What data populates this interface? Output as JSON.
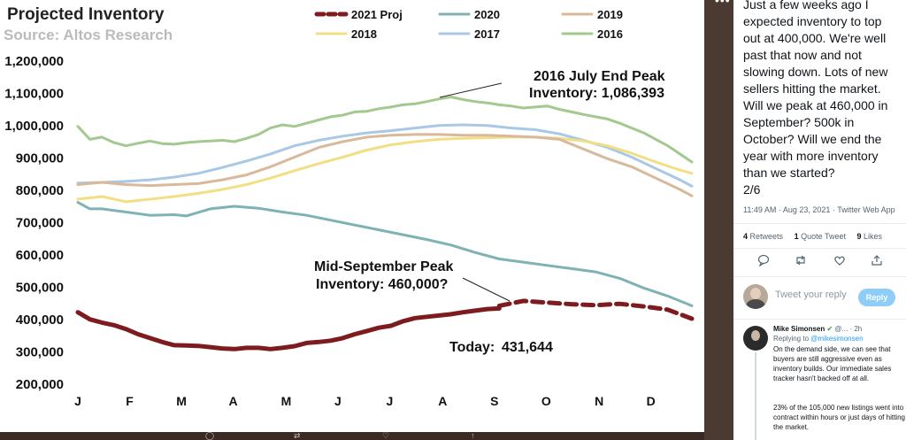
{
  "chart_data": {
    "type": "line",
    "title": "Projected Inventory",
    "subtitle": "Source: Altos Research",
    "categories": [
      "J",
      "F",
      "M",
      "A",
      "M",
      "J",
      "J",
      "A",
      "S",
      "O",
      "N",
      "D"
    ],
    "yticks": [
      "1,200,000",
      "1,100,000",
      "1,000,000",
      "900,000",
      "800,000",
      "700,000",
      "600,000",
      "500,000",
      "400,000",
      "300,000",
      "200,000"
    ],
    "ylim": [
      200000,
      1200000
    ],
    "xlim": [
      1,
      52
    ],
    "grid": false,
    "legend_position": "top",
    "series": [
      {
        "name": "2021 Proj",
        "color": "#7d1b1f",
        "dashed": true,
        "width": 5,
        "x": [
          36,
          38,
          40,
          42,
          44,
          46,
          48,
          50,
          52
        ],
        "y": [
          440000,
          455000,
          450000,
          445000,
          442000,
          446000,
          438000,
          428000,
          400000
        ]
      },
      {
        "name": "2020",
        "color": "#7fb2b2",
        "width": 3,
        "x": [
          1,
          2,
          3,
          5,
          7,
          9,
          10,
          12,
          14,
          16,
          18,
          20,
          22,
          24,
          26,
          28,
          30,
          32,
          34,
          36,
          38,
          40,
          42,
          44,
          46,
          48,
          50,
          52
        ],
        "y": [
          760000,
          740000,
          740000,
          730000,
          720000,
          722000,
          718000,
          740000,
          748000,
          742000,
          730000,
          720000,
          705000,
          690000,
          675000,
          660000,
          645000,
          628000,
          605000,
          585000,
          575000,
          565000,
          555000,
          545000,
          525000,
          495000,
          470000,
          440000
        ]
      },
      {
        "name": "2019",
        "color": "#d9b99b",
        "width": 3,
        "x": [
          1,
          3,
          5,
          7,
          9,
          11,
          13,
          15,
          17,
          19,
          21,
          23,
          25,
          27,
          29,
          31,
          33,
          35,
          37,
          39,
          41,
          43,
          45,
          47,
          49,
          51,
          52
        ],
        "y": [
          815000,
          822000,
          815000,
          812000,
          815000,
          818000,
          830000,
          845000,
          870000,
          900000,
          930000,
          948000,
          962000,
          968000,
          970000,
          970000,
          968000,
          968000,
          965000,
          962000,
          955000,
          925000,
          895000,
          870000,
          835000,
          800000,
          780000
        ]
      },
      {
        "name": "2018",
        "color": "#f2df85",
        "width": 3,
        "x": [
          1,
          3,
          5,
          7,
          9,
          11,
          13,
          15,
          17,
          19,
          21,
          23,
          25,
          27,
          29,
          31,
          33,
          35,
          37,
          39,
          41,
          43,
          45,
          47,
          49,
          51,
          52
        ],
        "y": [
          770000,
          778000,
          762000,
          770000,
          778000,
          788000,
          800000,
          815000,
          835000,
          858000,
          880000,
          900000,
          922000,
          938000,
          948000,
          955000,
          958000,
          960000,
          962000,
          962000,
          958000,
          950000,
          935000,
          912000,
          885000,
          860000,
          850000
        ]
      },
      {
        "name": "2017",
        "color": "#a9c8e6",
        "width": 3,
        "x": [
          1,
          3,
          5,
          7,
          9,
          11,
          13,
          15,
          17,
          19,
          21,
          23,
          25,
          27,
          29,
          31,
          33,
          35,
          37,
          39,
          41,
          43,
          45,
          47,
          49,
          51,
          52
        ],
        "y": [
          820000,
          822000,
          825000,
          830000,
          838000,
          850000,
          868000,
          888000,
          910000,
          935000,
          952000,
          965000,
          975000,
          982000,
          990000,
          998000,
          1000000,
          998000,
          990000,
          985000,
          972000,
          952000,
          930000,
          900000,
          865000,
          830000,
          810000
        ]
      },
      {
        "name": "2016",
        "color": "#a3c98e",
        "width": 3,
        "x": [
          1,
          2,
          3,
          4,
          5,
          6,
          7,
          8,
          9,
          10,
          11,
          12,
          13,
          14,
          15,
          16,
          17,
          18,
          19,
          20,
          21,
          22,
          23,
          24,
          25,
          26,
          27,
          28,
          29,
          30,
          31,
          32,
          33,
          34,
          35,
          36,
          37,
          38,
          39,
          40,
          41,
          42,
          43,
          44,
          45,
          46,
          47,
          48,
          49,
          50,
          51,
          52
        ],
        "y": [
          995000,
          955000,
          962000,
          945000,
          935000,
          943000,
          950000,
          942000,
          940000,
          945000,
          948000,
          950000,
          952000,
          948000,
          958000,
          970000,
          990000,
          1000000,
          995000,
          1005000,
          1015000,
          1025000,
          1030000,
          1040000,
          1042000,
          1050000,
          1055000,
          1062000,
          1065000,
          1072000,
          1080000,
          1086393,
          1078000,
          1072000,
          1068000,
          1062000,
          1058000,
          1052000,
          1055000,
          1058000,
          1048000,
          1040000,
          1032000,
          1025000,
          1018000,
          1005000,
          990000,
          975000,
          955000,
          935000,
          910000,
          885000
        ]
      },
      {
        "name": "2021",
        "color": "#7d1b1f",
        "width": 5,
        "x": [
          1,
          2,
          3,
          4,
          5,
          6,
          7,
          8,
          9,
          10,
          11,
          12,
          13,
          14,
          15,
          16,
          17,
          18,
          19,
          20,
          21,
          22,
          23,
          24,
          25,
          26,
          27,
          28,
          29,
          30,
          31,
          32,
          33,
          34,
          35,
          36
        ],
        "y": [
          420000,
          398000,
          388000,
          380000,
          368000,
          352000,
          340000,
          328000,
          318000,
          317000,
          316000,
          312000,
          308000,
          306000,
          310000,
          310000,
          306000,
          310000,
          315000,
          325000,
          328000,
          332000,
          340000,
          352000,
          362000,
          372000,
          378000,
          392000,
          402000,
          406000,
          410000,
          414000,
          420000,
          425000,
          430000,
          431644
        ]
      }
    ],
    "legend": [
      {
        "label": "2021 Proj",
        "series": 0
      },
      {
        "label": "2020",
        "series": 1
      },
      {
        "label": "2019",
        "series": 2
      },
      {
        "label": "2018",
        "series": 3
      },
      {
        "label": "2017",
        "series": 4
      },
      {
        "label": "2016",
        "series": 5
      }
    ],
    "annotations": {
      "peak_2016_line1": "2016 July End Peak",
      "peak_2016_line2": "Inventory: 1,086,393",
      "mid_sept_line1": "Mid-September Peak",
      "mid_sept_line2": "Inventory: 460,000?",
      "today_label": "Today:",
      "today_value": "431,644"
    }
  },
  "tweet": {
    "body_1": "Just a few weeks ago I expected inventory to top out at 400,000. We're well past that now and not slowing down. Lots of new sellers hitting the market.",
    "body_2": "Will we peak at 460,000 in September? 500k in October? Will we end the year with more inventory than we started?",
    "thread_count": "2/6",
    "meta": "11:49 AM · Aug 23, 2021 · Twitter Web App",
    "retweets_count": "4",
    "retweets_label": "Retweets",
    "quotes_count": "1",
    "quotes_label": "Quote Tweet",
    "likes_count": "9",
    "likes_label": "Likes",
    "reply_placeholder": "Tweet your reply",
    "reply_button": "Reply"
  },
  "reply": {
    "author": "Mike Simonsen",
    "handle": "@...",
    "time": "· 2h",
    "replying_to_label": "Replying to",
    "replying_to_handle": "@mikesimonsen",
    "text_1": "On the demand side, we can see that buyers are still aggressive even as inventory builds. Our immediate sales tracker hasn't backed off at all.",
    "text_2": "23% of the 105,000 new listings went into contract within hours or just days of hitting the market."
  },
  "colors": {
    "twitter_blue": "#1d9bf0",
    "reply_button_bg": "#8ecdf8",
    "series_2021": "#7d1b1f"
  }
}
